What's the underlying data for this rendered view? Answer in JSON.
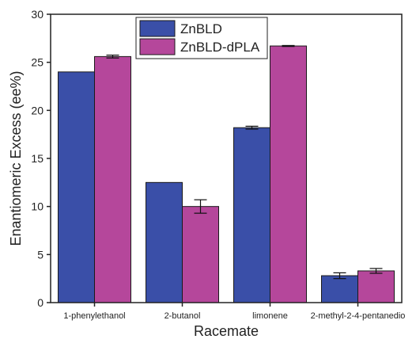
{
  "chart_data": {
    "type": "bar",
    "xlabel": "Racemate",
    "ylabel": "Enantiomeric Excess (ee%)",
    "ylim": [
      0,
      30
    ],
    "yticks": [
      0,
      5,
      10,
      15,
      20,
      25,
      30
    ],
    "categories": [
      "1-phenylethanol",
      "2-butanol",
      "limonene",
      "2-methyl-2-4-pentanedio"
    ],
    "series": [
      {
        "name": "ZnBLD",
        "color": "#3a4fa8",
        "values": [
          24.0,
          12.5,
          18.2,
          2.8
        ],
        "errors": [
          0.0,
          0.0,
          0.15,
          0.3
        ]
      },
      {
        "name": "ZnBLD-dPLA",
        "color": "#b5479b",
        "values": [
          25.6,
          10.0,
          26.7,
          3.3
        ],
        "errors": [
          0.15,
          0.7,
          0.05,
          0.25
        ]
      }
    ],
    "legend": "top-center",
    "grid": false
  }
}
